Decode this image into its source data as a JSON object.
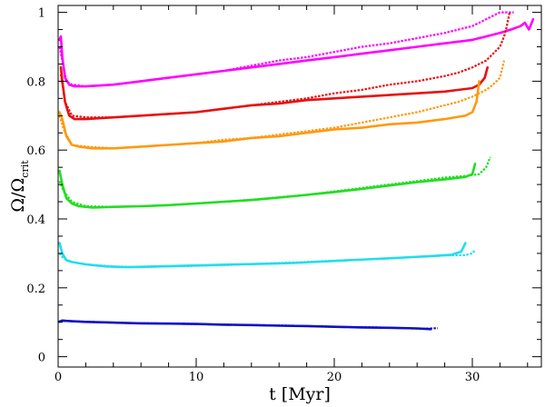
{
  "chart_data": {
    "type": "line",
    "title": "",
    "xlabel": "t  [Myr]",
    "ylabel": "Ω/Ω",
    "ylabel_sub": "crit",
    "xlim": [
      0,
      35
    ],
    "ylim": [
      -0.03,
      1.02
    ],
    "xticks": [
      0,
      10,
      20,
      30
    ],
    "yticks": [
      0,
      0.2,
      0.4,
      0.6,
      0.8,
      1
    ],
    "ytick_labels": [
      "0",
      "0.2",
      "0.4",
      "0.6",
      "0.8",
      "1"
    ],
    "grid": false,
    "legend": "none",
    "series": [
      {
        "name": "magenta-solid",
        "color": "#ff00ff",
        "style": "solid",
        "x": [
          0.1,
          0.2,
          0.3,
          0.5,
          0.8,
          1.2,
          2,
          4,
          6,
          8,
          10,
          12,
          14,
          16,
          18,
          20,
          22,
          24,
          26,
          28,
          30,
          31,
          32,
          32.8,
          33.5,
          33.8,
          34.1,
          34.3,
          34.4
        ],
        "y": [
          0.92,
          0.93,
          0.87,
          0.81,
          0.79,
          0.785,
          0.785,
          0.79,
          0.8,
          0.81,
          0.82,
          0.83,
          0.84,
          0.85,
          0.86,
          0.87,
          0.88,
          0.89,
          0.9,
          0.91,
          0.92,
          0.93,
          0.94,
          0.95,
          0.96,
          0.97,
          0.95,
          0.97,
          0.98
        ]
      },
      {
        "name": "magenta-dashed",
        "color": "#ff00ff",
        "style": "dashed",
        "x": [
          0.1,
          0.3,
          0.6,
          1,
          2,
          4,
          6,
          8,
          10,
          12,
          14,
          16,
          18,
          20,
          22,
          24,
          26,
          28,
          29,
          30,
          30.5,
          31,
          31.5,
          32,
          32.5,
          33
        ],
        "y": [
          0.9,
          0.86,
          0.8,
          0.79,
          0.785,
          0.79,
          0.8,
          0.81,
          0.82,
          0.83,
          0.845,
          0.86,
          0.87,
          0.885,
          0.9,
          0.91,
          0.925,
          0.94,
          0.95,
          0.96,
          0.97,
          0.98,
          0.99,
          1.0,
          1.0,
          1.0
        ]
      },
      {
        "name": "red-solid",
        "color": "#e81010",
        "style": "solid",
        "x": [
          0.2,
          0.3,
          0.5,
          0.8,
          1.2,
          2,
          4,
          6,
          8,
          10,
          12,
          14,
          16,
          18,
          20,
          22,
          24,
          26,
          28,
          30,
          30.5,
          30.9,
          31.1
        ],
        "y": [
          0.84,
          0.8,
          0.74,
          0.7,
          0.69,
          0.69,
          0.695,
          0.7,
          0.705,
          0.71,
          0.72,
          0.73,
          0.735,
          0.745,
          0.75,
          0.755,
          0.76,
          0.765,
          0.77,
          0.78,
          0.79,
          0.81,
          0.84
        ]
      },
      {
        "name": "red-dashed",
        "color": "#e81010",
        "style": "dashed",
        "x": [
          0.2,
          0.5,
          1,
          2,
          4,
          6,
          8,
          10,
          12,
          14,
          16,
          18,
          20,
          22,
          24,
          26,
          28,
          29,
          30,
          30.5,
          31,
          31.5,
          32,
          32.3,
          32.5,
          32.7
        ],
        "y": [
          0.82,
          0.74,
          0.7,
          0.695,
          0.695,
          0.7,
          0.705,
          0.71,
          0.72,
          0.73,
          0.74,
          0.75,
          0.765,
          0.775,
          0.79,
          0.8,
          0.815,
          0.825,
          0.84,
          0.85,
          0.86,
          0.88,
          0.9,
          0.93,
          0.96,
          1.0
        ]
      },
      {
        "name": "orange-solid",
        "color": "#ff9910",
        "style": "solid",
        "x": [
          0.1,
          0.3,
          0.6,
          1,
          1.5,
          2.5,
          4,
          6,
          8,
          10,
          12,
          14,
          16,
          18,
          20,
          22,
          24,
          26,
          28,
          29.5,
          30,
          30.3,
          30.5
        ],
        "y": [
          0.71,
          0.69,
          0.64,
          0.615,
          0.61,
          0.605,
          0.605,
          0.61,
          0.615,
          0.62,
          0.625,
          0.635,
          0.64,
          0.65,
          0.66,
          0.665,
          0.675,
          0.68,
          0.69,
          0.7,
          0.71,
          0.74,
          0.8
        ]
      },
      {
        "name": "orange-dashed",
        "color": "#ff9910",
        "style": "dashed",
        "x": [
          0.1,
          0.4,
          1,
          2,
          4,
          6,
          8,
          10,
          12,
          14,
          16,
          18,
          20,
          22,
          24,
          26,
          28,
          29,
          30,
          30.5,
          31,
          31.5,
          32,
          32.3
        ],
        "y": [
          0.7,
          0.66,
          0.615,
          0.61,
          0.605,
          0.61,
          0.615,
          0.62,
          0.63,
          0.635,
          0.645,
          0.655,
          0.665,
          0.68,
          0.695,
          0.71,
          0.73,
          0.74,
          0.755,
          0.765,
          0.775,
          0.79,
          0.81,
          0.86
        ]
      },
      {
        "name": "green-solid",
        "color": "#22dd22",
        "style": "solid",
        "x": [
          0.1,
          0.3,
          0.6,
          1,
          1.5,
          2.5,
          4,
          6,
          8,
          10,
          12,
          14,
          16,
          18,
          20,
          22,
          24,
          26,
          28,
          29.5,
          30,
          30.2
        ],
        "y": [
          0.54,
          0.5,
          0.46,
          0.445,
          0.437,
          0.433,
          0.435,
          0.437,
          0.44,
          0.445,
          0.45,
          0.455,
          0.462,
          0.47,
          0.478,
          0.487,
          0.497,
          0.507,
          0.515,
          0.522,
          0.53,
          0.56
        ]
      },
      {
        "name": "green-dashed",
        "color": "#22dd22",
        "style": "dashed",
        "x": [
          0.1,
          0.4,
          1,
          2,
          4,
          6,
          8,
          10,
          12,
          14,
          16,
          18,
          20,
          22,
          24,
          26,
          28,
          29.5,
          30.5,
          31,
          31.3
        ],
        "y": [
          0.51,
          0.48,
          0.45,
          0.437,
          0.435,
          0.437,
          0.44,
          0.445,
          0.45,
          0.456,
          0.463,
          0.47,
          0.48,
          0.49,
          0.5,
          0.51,
          0.52,
          0.525,
          0.53,
          0.55,
          0.58
        ]
      },
      {
        "name": "cyan-solid",
        "color": "#22ddee",
        "style": "solid",
        "x": [
          0.1,
          0.3,
          0.6,
          1,
          2,
          3.5,
          5,
          7,
          9,
          11,
          13,
          15,
          17,
          19,
          21,
          23,
          25,
          27,
          28.5,
          29.2,
          29.5
        ],
        "y": [
          0.33,
          0.3,
          0.28,
          0.275,
          0.268,
          0.262,
          0.26,
          0.262,
          0.264,
          0.266,
          0.268,
          0.27,
          0.272,
          0.276,
          0.28,
          0.284,
          0.288,
          0.292,
          0.296,
          0.305,
          0.33
        ]
      },
      {
        "name": "cyan-dashed",
        "color": "#22ddee",
        "style": "dashed",
        "x": [
          0.1,
          0.4,
          1,
          2,
          4,
          6,
          8,
          10,
          12,
          14,
          16,
          18,
          20,
          22,
          24,
          26,
          28,
          29.5,
          30,
          30.2
        ],
        "y": [
          0.3,
          0.285,
          0.275,
          0.268,
          0.262,
          0.26,
          0.262,
          0.264,
          0.266,
          0.269,
          0.272,
          0.275,
          0.279,
          0.282,
          0.285,
          0.29,
          0.294,
          0.295,
          0.3,
          0.31
        ]
      },
      {
        "name": "blue-solid",
        "color": "#1010c8",
        "style": "solid",
        "x": [
          0.1,
          0.3,
          0.6,
          1,
          2,
          4,
          6,
          8,
          10,
          12,
          14,
          16,
          18,
          20,
          22,
          24,
          26,
          27
        ],
        "y": [
          0.102,
          0.105,
          0.104,
          0.103,
          0.101,
          0.099,
          0.097,
          0.096,
          0.095,
          0.093,
          0.092,
          0.09,
          0.089,
          0.087,
          0.085,
          0.084,
          0.082,
          0.08
        ]
      },
      {
        "name": "blue-dashed",
        "color": "#1010c8",
        "style": "dashed",
        "x": [
          0.1,
          0.5,
          1,
          3,
          5,
          8,
          11,
          14,
          17,
          20,
          23,
          25,
          26.5,
          27.5
        ],
        "y": [
          0.102,
          0.104,
          0.103,
          0.1,
          0.098,
          0.096,
          0.094,
          0.092,
          0.09,
          0.087,
          0.085,
          0.083,
          0.081,
          0.083
        ]
      }
    ]
  }
}
